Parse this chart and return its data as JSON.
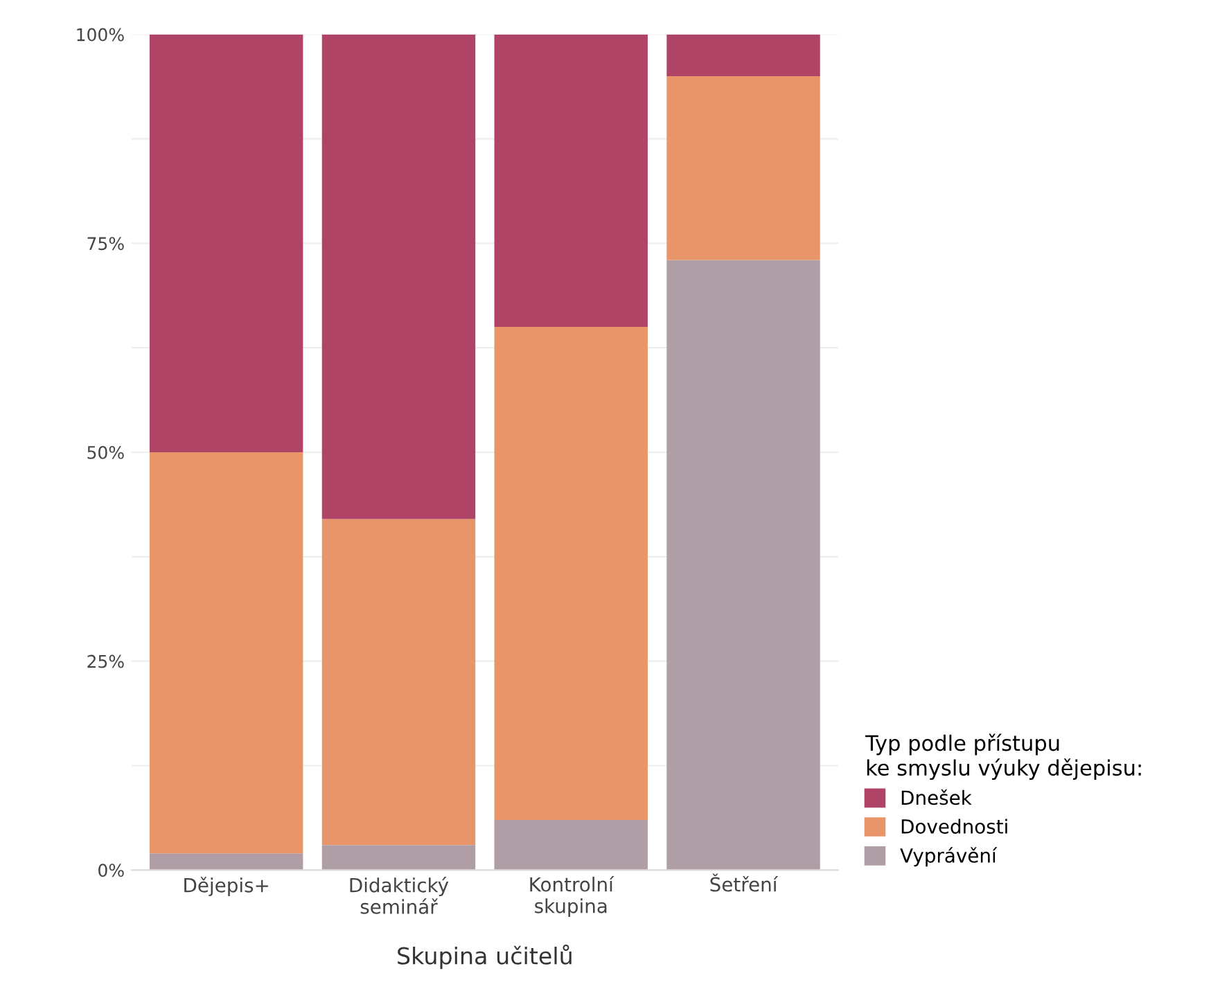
{
  "chart_data": {
    "type": "bar",
    "stacked": true,
    "xlabel": "Skupina učitelů",
    "legend_title": "Typ podle přístupu\nke smyslu výuky dějepisu:",
    "categories": [
      "Dějepis+",
      "Didaktický\nseminář",
      "Kontrolní\nskupina",
      "Šetření"
    ],
    "series": [
      {
        "name": "Vyprávění",
        "color": "#b09ea6",
        "values": [
          2,
          3,
          6,
          73
        ]
      },
      {
        "name": "Dovednosti",
        "color": "#e8956a",
        "values": [
          48,
          39,
          59,
          22
        ]
      },
      {
        "name": "Dnešek",
        "color": "#b04466",
        "values": [
          50,
          58,
          35,
          5
        ]
      }
    ],
    "ylim": [
      0,
      100
    ],
    "yticks": [
      {
        "value": 0,
        "label": "0%"
      },
      {
        "value": 12.5,
        "label": null
      },
      {
        "value": 25,
        "label": "25%"
      },
      {
        "value": 37.5,
        "label": null
      },
      {
        "value": 50,
        "label": "50%"
      },
      {
        "value": 62.5,
        "label": null
      },
      {
        "value": 75,
        "label": "75%"
      },
      {
        "value": 87.5,
        "label": null
      },
      {
        "value": 100,
        "label": "100%"
      }
    ],
    "grid": "y",
    "legend": "bottom right"
  }
}
